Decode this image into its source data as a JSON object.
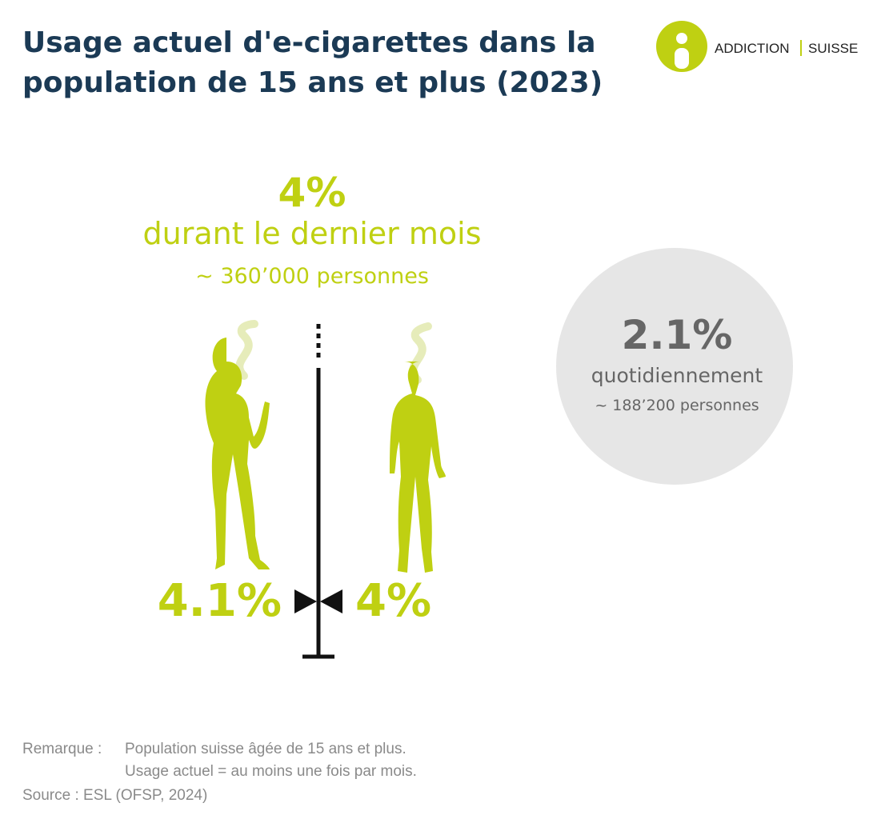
{
  "header": {
    "title_lines": [
      "Usage actuel d'e-cigarettes dans la",
      "population de 15 ans et plus (2023)"
    ],
    "logo": {
      "left": "ADDICTION",
      "right": "SUISSE"
    }
  },
  "monthly": {
    "value": "4%",
    "label": "durant le dernier mois",
    "people": "~ 360’000 personnes"
  },
  "by_sex": {
    "women": "4.1%",
    "men": "4%"
  },
  "daily": {
    "value": "2.1%",
    "label": "quotidiennement",
    "people": "~ 188’200 personnes"
  },
  "notes": {
    "remark_label": "Remarque :",
    "remark_lines": [
      "Population suisse âgée de 15 ans et plus.",
      "Usage actuel = au moins une fois par mois."
    ],
    "source": "Source : ESL (OFSP, 2024)"
  }
}
